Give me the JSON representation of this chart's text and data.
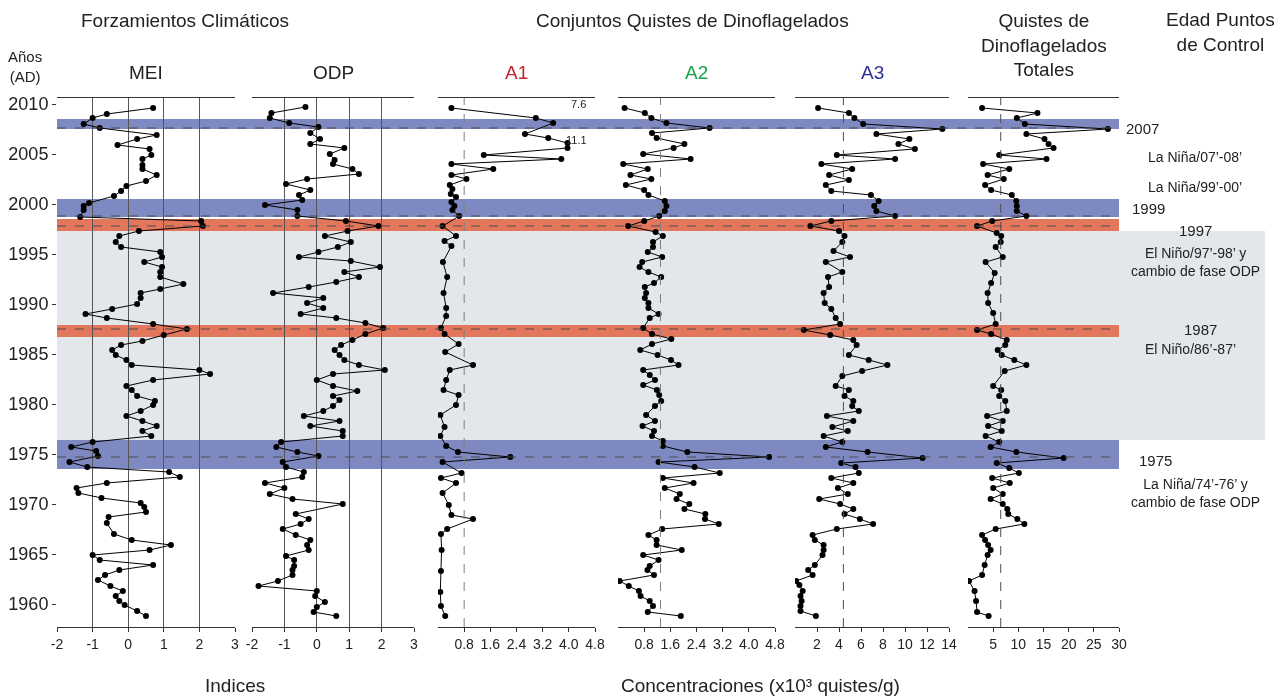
{
  "chart_data": [
    {
      "type": "line",
      "orientation": "horizontal",
      "title": "MEI",
      "xlim": [
        -2,
        3
      ],
      "xticks": [
        -2,
        -1,
        0,
        1,
        2,
        3
      ],
      "ylim": [
        1957.7,
        2010.6
      ],
      "yticks": [
        1960,
        1965,
        1970,
        1975,
        1980,
        1985,
        1990,
        1995,
        2000,
        2005,
        2010
      ],
      "grid": "x",
      "marker": "circle",
      "line_style": "solid",
      "annotations": [
        "Forzamientos Climáticos",
        "Años\n(AD)",
        "Indices"
      ],
      "bands": [
        {
          "axis": "y",
          "from": 1976.4,
          "to": 1997.3,
          "color": "#e3e6ea"
        },
        {
          "axis": "y",
          "from": 2007.5,
          "to": 2008.5,
          "color": "#7e89c2"
        },
        {
          "axis": "y",
          "from": 1998.7,
          "to": 2000.5,
          "color": "#7e89c2"
        },
        {
          "axis": "y",
          "from": 1997.3,
          "to": 1998.5,
          "color": "#e2775d"
        },
        {
          "axis": "y",
          "from": 1986.7,
          "to": 1987.9,
          "color": "#e2775d"
        },
        {
          "axis": "y",
          "from": 1973.5,
          "to": 1976.4,
          "color": "#7e89c2"
        }
      ],
      "ref_lines": [
        {
          "axis": "y",
          "value": 2007.6,
          "color": "#4d4d4d",
          "line_style": "dashed"
        },
        {
          "axis": "y",
          "value": 1998.8,
          "color": "#4d4d4d",
          "line_style": "dashed"
        },
        {
          "axis": "y",
          "value": 1997.8,
          "color": "#4d4d4d",
          "line_style": "dashed"
        },
        {
          "axis": "y",
          "value": 1987.5,
          "color": "#4d4d4d",
          "line_style": "dashed"
        },
        {
          "axis": "y",
          "value": 1974.7,
          "color": "#4d4d4d",
          "line_style": "dashed"
        }
      ],
      "series": [
        {
          "color": "#000000",
          "x": [
            2009.6,
            2009.0,
            2008.6,
            2008.0,
            2007.6,
            2006.9,
            2006.5,
            2005.9,
            2005.5,
            2004.9,
            2004.5,
            2003.9,
            2003.5,
            2002.9,
            2002.3,
            2001.8,
            2001.3,
            2000.8,
            2000.1,
            1999.8,
            1999.4,
            1998.7,
            1998.3,
            1997.8,
            1997.3,
            1996.8,
            1996.2,
            1995.7,
            1995.2,
            1994.7,
            1994.2,
            1993.7,
            1993.2,
            1992.7,
            1992.0,
            1991.5,
            1991.1,
            1990.6,
            1990.0,
            1989.5,
            1989.0,
            1988.6,
            1988.0,
            1987.5,
            1986.9,
            1986.3,
            1985.9,
            1985.4,
            1984.9,
            1984.4,
            1983.9,
            1983.4,
            1983.0,
            1982.4,
            1981.8,
            1981.4,
            1980.8,
            1980.3,
            1979.9,
            1979.3,
            1978.8,
            1978.3,
            1977.8,
            1977.3,
            1976.8,
            1976.2,
            1975.7,
            1975.3,
            1974.8,
            1974.2,
            1973.7,
            1973.2,
            1972.7,
            1972.1,
            1971.6,
            1971.1,
            1970.6,
            1970.1,
            1969.7,
            1969.2,
            1968.7,
            1968.1,
            1967.0,
            1966.4,
            1965.9,
            1965.4,
            1964.9,
            1964.4,
            1963.9,
            1963.4,
            1962.9,
            1962.4,
            1961.8,
            1961.3,
            1960.8,
            1960.3,
            1959.9,
            1959.3,
            1958.8
          ],
          "values": [
            0.7,
            -0.6,
            -1.0,
            -1.25,
            -0.8,
            0.8,
            0.25,
            -0.3,
            0.6,
            0.65,
            0.4,
            0.4,
            0.4,
            0.8,
            0.5,
            -0.05,
            -0.2,
            -0.4,
            -1.1,
            -1.25,
            -1.25,
            -1.35,
            2.05,
            2.1,
            0.3,
            -0.25,
            -0.35,
            -0.2,
            0.9,
            0.95,
            0.45,
            0.95,
            0.9,
            0.9,
            1.55,
            0.9,
            0.35,
            0.35,
            0.25,
            -0.45,
            -1.2,
            -0.6,
            0.7,
            1.65,
            1.0,
            0.4,
            -0.2,
            -0.45,
            -0.35,
            -0.05,
            0.1,
            2.0,
            2.3,
            0.7,
            -0.05,
            0.1,
            0.25,
            0.75,
            0.7,
            0.35,
            -0.05,
            0.4,
            0.8,
            0.4,
            0.65,
            -1.0,
            -1.6,
            -0.9,
            -0.85,
            -1.65,
            -1.15,
            1.15,
            1.45,
            -0.6,
            -1.45,
            -1.4,
            -0.75,
            0.35,
            0.45,
            0.5,
            -0.55,
            -0.6,
            -0.4,
            0.1,
            1.2,
            0.6,
            -1.0,
            -0.8,
            0.7,
            -0.25,
            -0.65,
            -0.85,
            -0.5,
            -0.15,
            -0.35,
            -0.25,
            -0.1,
            0.25,
            0.5
          ]
        }
      ]
    },
    {
      "type": "line",
      "orientation": "horizontal",
      "title": "ODP",
      "xlim": [
        -2,
        3
      ],
      "xticks": [
        -2,
        -1,
        0,
        1,
        2,
        3
      ],
      "ylim": [
        1957.7,
        2010.6
      ],
      "grid": "x",
      "marker": "circle",
      "line_style": "solid",
      "tick_labels": "x",
      "series": [
        {
          "color": "#000000",
          "x": [
            2009.7,
            2009.1,
            2008.6,
            2008.1,
            2007.7,
            2007.1,
            2006.5,
            2006.0,
            2005.6,
            2005.0,
            2004.4,
            2004.0,
            2003.5,
            2003.0,
            2002.5,
            2002.0,
            2001.4,
            2000.9,
            2000.4,
            1999.9,
            1999.4,
            1998.8,
            1998.3,
            1997.8,
            1997.3,
            1996.8,
            1996.2,
            1995.7,
            1995.2,
            1994.7,
            1994.3,
            1993.7,
            1993.2,
            1992.7,
            1992.2,
            1991.7,
            1991.1,
            1990.6,
            1990.1,
            1989.6,
            1989.0,
            1988.6,
            1988.1,
            1987.6,
            1987.0,
            1986.4,
            1985.9,
            1985.4,
            1984.9,
            1984.4,
            1983.9,
            1983.4,
            1983.0,
            1982.4,
            1981.8,
            1981.3,
            1980.8,
            1980.4,
            1979.8,
            1979.3,
            1978.8,
            1978.3,
            1977.8,
            1977.3,
            1976.8,
            1976.2,
            1975.7,
            1975.2,
            1974.8,
            1974.2,
            1973.7,
            1973.2,
            1972.7,
            1972.1,
            1971.6,
            1971.0,
            1970.5,
            1970.0,
            1969.0,
            1968.5,
            1968.0,
            1967.5,
            1966.9,
            1966.4,
            1965.9,
            1965.4,
            1964.8,
            1964.4,
            1963.8,
            1963.4,
            1962.9,
            1962.3,
            1961.8,
            1961.3,
            1960.8,
            1960.2,
            1959.7,
            1959.2,
            1958.8
          ],
          "values": [
            -0.35,
            -1.4,
            -1.45,
            -0.85,
            0.05,
            -0.2,
            0.1,
            -0.2,
            0.85,
            0.4,
            0.55,
            0.5,
            1.1,
            1.3,
            -0.3,
            -0.95,
            -0.2,
            -0.55,
            -0.45,
            -1.6,
            -0.6,
            -0.6,
            0.9,
            1.9,
            0.95,
            0.25,
            1.05,
            0.65,
            0.05,
            -0.55,
            1.05,
            1.95,
            0.85,
            1.3,
            0.6,
            -0.25,
            -1.35,
            0.2,
            -0.3,
            0.2,
            -0.5,
            0.6,
            1.5,
            2.05,
            1.5,
            1.1,
            0.75,
            0.55,
            0.7,
            0.85,
            1.3,
            2.1,
            0.5,
            0,
            0.5,
            1.25,
            0.5,
            0.7,
            0.5,
            0.2,
            -0.4,
            0.7,
            -0.2,
            0.8,
            0.8,
            -1.1,
            -1.25,
            -0.6,
            0.05,
            -1.05,
            -0.95,
            -0.4,
            -0.45,
            -1.6,
            -1.0,
            -1.45,
            -0.75,
            0.8,
            -0.65,
            -0.25,
            -0.5,
            -1.05,
            -0.65,
            -0.2,
            -0.3,
            -0.25,
            -0.95,
            -0.7,
            -0.7,
            -0.75,
            -0.75,
            -1.2,
            -1.8,
            0,
            -0.05,
            0.25,
            0,
            -0.1,
            0.6
          ]
        }
      ]
    },
    {
      "type": "line",
      "orientation": "horizontal",
      "title": "A1",
      "xlim": [
        0,
        4.8
      ],
      "xticks": [
        0.8,
        1.6,
        2.4,
        3.2,
        {
          "value": 4,
          "label": "4.0"
        },
        4.8
      ],
      "ylim": [
        1957.7,
        2010.6
      ],
      "marker": "circle",
      "line_style": "solid",
      "tick_labels": "x",
      "annotations": [
        "Conjuntos Quistes de Dinoflagelados",
        "Concentraciones (x10³ quistes/g)",
        "7.6",
        "11.1"
      ],
      "ref_lines": [
        {
          "axis": "x",
          "value": 0.8,
          "color": "#7f7f7f",
          "line_style": "dashed"
        }
      ],
      "series": [
        {
          "color": "#000000",
          "x": [
            2009.6,
            2008.6,
            2008.1,
            2007.0,
            2006.6,
            2006.1,
            2005.6,
            2004.9,
            2004.5,
            2004.0,
            2003.5,
            2002.9,
            2002.5,
            2001.9,
            2001.5,
            2001.0,
            2000.7,
            2000.2,
            1999.8,
            1999.4,
            1998.8,
            1997.8,
            1996.8,
            1996.3,
            1995.8,
            1994.2,
            1992.7,
            1991.1,
            1989.6,
            1988.8,
            1987.6,
            1987.0,
            1986.0,
            1985.2,
            1983.9,
            1983.4,
            1982.4,
            1981.4,
            1980.9,
            1979.9,
            1978.9,
            1977.7,
            1976.8,
            1975.8,
            1975.2,
            1974.7,
            1974.2,
            1973.1,
            1972.6,
            1972.1,
            1971.1,
            1969.9,
            1968.9,
            1968.5,
            1967.5,
            1967.0,
            1965.4,
            1963.3,
            1961.2,
            1959.8,
            1958.8
          ],
          "values": [
            0.41,
            2.99,
            3.52,
            2.66,
            3.37,
            3.96,
            3.96,
            1.4,
            3.77,
            0.41,
            1.69,
            0.41,
            0.87,
            0.36,
            0.44,
            0.39,
            0.55,
            0.41,
            0.5,
            0.44,
            0.65,
            0.14,
            0.55,
            0.2,
            0.41,
            0.15,
            0.28,
            0.17,
            0.25,
            0.25,
            0.09,
            0.2,
            0.63,
            0.22,
            1.07,
            0.36,
            0.25,
            0.17,
            0.63,
            0.55,
            0.07,
            0.2,
            0.07,
            0.25,
            0.61,
            2.21,
            0.14,
            0.72,
            0.09,
            0.55,
            0.14,
            0.33,
            0.41,
            1.07,
            0.28,
            0.09,
            0.11,
            0.09,
            0.07,
            0.09,
            0.22
          ]
        }
      ]
    },
    {
      "type": "line",
      "orientation": "horizontal",
      "title": "A2",
      "xlim": [
        0,
        4.8
      ],
      "xticks": [
        0.8,
        1.6,
        2.4,
        3.2,
        {
          "value": 4,
          "label": "4.0"
        },
        4.8
      ],
      "ylim": [
        1957.7,
        2010.6
      ],
      "marker": "circle",
      "line_style": "solid",
      "tick_labels": "x",
      "ref_lines": [
        {
          "axis": "x",
          "value": 1.3,
          "color": "#7f7f7f",
          "line_style": "dashed"
        }
      ],
      "series": [
        {
          "color": "#000000",
          "x": [
            2009.6,
            2009.1,
            2008.6,
            2008.1,
            2007.6,
            2007.1,
            2006.6,
            2006.0,
            2005.6,
            2005.0,
            2004.5,
            2004.0,
            2003.5,
            2002.9,
            2002.5,
            2001.9,
            2001.4,
            2000.9,
            2000.3,
            1999.8,
            1999.3,
            1998.8,
            1998.3,
            1997.8,
            1997.2,
            1996.8,
            1996.2,
            1995.7,
            1995.2,
            1994.7,
            1994.2,
            1993.7,
            1993.2,
            1992.7,
            1992.1,
            1991.7,
            1991.1,
            1990.6,
            1990.1,
            1989.6,
            1989.0,
            1988.6,
            1987.6,
            1987.0,
            1986.5,
            1986.0,
            1985.4,
            1984.9,
            1984.4,
            1983.9,
            1983.4,
            1982.9,
            1982.4,
            1981.9,
            1981.4,
            1980.9,
            1980.3,
            1979.8,
            1978.9,
            1978.3,
            1977.8,
            1977.3,
            1976.8,
            1976.3,
            1975.8,
            1975.2,
            1974.7,
            1974.2,
            1973.7,
            1973.1,
            1972.6,
            1972.1,
            1971.6,
            1971.0,
            1970.5,
            1970.0,
            1969.5,
            1969.0,
            1968.5,
            1968.0,
            1967.5,
            1966.9,
            1966.4,
            1965.9,
            1965.4,
            1964.9,
            1964.4,
            1963.8,
            1963.4,
            1962.9,
            1962.3,
            1961.8,
            1961.3,
            1960.8,
            1960.3,
            1959.8,
            1959.2,
            1958.8
          ],
          "values": [
            0.2,
            0.82,
            1.02,
            1.48,
            2.8,
            1.04,
            1.18,
            2.03,
            1.7,
            0.77,
            2.22,
            0.16,
            0.91,
            0.38,
            1.02,
            0.24,
            0.8,
            0.93,
            1.43,
            1.48,
            1.43,
            1.26,
            0.8,
            0.31,
            1.15,
            1.37,
            1.07,
            1.07,
            0.91,
            1.35,
            0.74,
            0.66,
            0.93,
            1.32,
            1.1,
            0.82,
            0.86,
            0.82,
            0.93,
            0.93,
            1.24,
            0.97,
            0.77,
            1.04,
            1.63,
            1.04,
            0.68,
            1.21,
            1.62,
            1.85,
            0.77,
            0.97,
            1.13,
            0.77,
            1.19,
            1.26,
            1.32,
            1.13,
            0.86,
            1.13,
            0.75,
            1.1,
            1.04,
            1.37,
            1.37,
            2.12,
            4.62,
            1.24,
            2.34,
            3.11,
            1.37,
            2.31,
            1.43,
            1.89,
            1.79,
            2.18,
            2.03,
            2.67,
            2.66,
            3.08,
            1.35,
            0.93,
            1.18,
            1.18,
            1.95,
            0.77,
            1.24,
            0.97,
            0.9,
            1.1,
            0.05,
            0.33,
            0.64,
            0.69,
            0.97,
            1.07,
            0.91,
            1.92
          ]
        }
      ]
    },
    {
      "type": "line",
      "orientation": "horizontal",
      "title": "A3",
      "xlim": [
        0,
        14
      ],
      "xticks": [
        2,
        4,
        6,
        8,
        10,
        12,
        14
      ],
      "ylim": [
        1957.7,
        2010.6
      ],
      "marker": "circle",
      "line_style": "solid",
      "tick_labels": "x",
      "ref_lines": [
        {
          "axis": "x",
          "value": 4.4,
          "color": "#4d4d4d",
          "line_style": "dashed"
        }
      ],
      "series": [
        {
          "color": "#000000",
          "x": [
            2009.6,
            2009.1,
            2008.6,
            2008.0,
            2007.5,
            2007.0,
            2006.5,
            2006.0,
            2005.5,
            2004.9,
            2004.5,
            2004.0,
            2003.5,
            2002.9,
            2002.4,
            2001.9,
            2001.3,
            2000.9,
            2000.3,
            1999.8,
            1999.3,
            1998.8,
            1998.3,
            1997.8,
            1997.3,
            1996.8,
            1996.2,
            1995.3,
            1994.7,
            1994.2,
            1993.2,
            1992.7,
            1991.7,
            1991.1,
            1990.1,
            1989.5,
            1988.6,
            1988.0,
            1987.4,
            1986.9,
            1986.4,
            1985.9,
            1984.9,
            1984.4,
            1983.9,
            1983.3,
            1982.8,
            1981.8,
            1981.4,
            1980.8,
            1980.3,
            1979.8,
            1979.3,
            1978.8,
            1978.3,
            1977.7,
            1977.3,
            1976.8,
            1976.2,
            1975.7,
            1975.2,
            1974.6,
            1974.1,
            1973.7,
            1973.1,
            1972.6,
            1972.1,
            1971.6,
            1971.0,
            1970.5,
            1970.0,
            1969.5,
            1969.0,
            1968.5,
            1968.0,
            1967.5,
            1966.9,
            1966.4,
            1965.9,
            1965.4,
            1964.9,
            1963.9,
            1963.4,
            1962.9,
            1962.3,
            1961.9,
            1961.3,
            1960.8,
            1960.3,
            1959.8,
            1959.3,
            1958.8
          ],
          "values": [
            2.1,
            4.9,
            5.4,
            6.2,
            13.4,
            7.4,
            10.4,
            9.4,
            10.9,
            3.8,
            9.1,
            2.4,
            5.2,
            3.1,
            4.9,
            2.8,
            3.3,
            6.9,
            7.6,
            7.2,
            7.4,
            9.1,
            3.3,
            1.4,
            4.0,
            4.5,
            4.3,
            3.5,
            5.0,
            2.8,
            4.3,
            3.0,
            3.1,
            2.6,
            2.7,
            3.3,
            3.7,
            4.1,
            0.8,
            3.2,
            5.3,
            5.6,
            4.9,
            6.7,
            8.4,
            6.1,
            4.3,
            3.7,
            4.9,
            4.5,
            5.3,
            5.2,
            5.8,
            2.9,
            5.3,
            3.4,
            4.8,
            2.6,
            4.3,
            2.8,
            6.6,
            11.6,
            4.2,
            5.5,
            5.8,
            3.3,
            5.3,
            3.9,
            4.8,
            2.2,
            4.1,
            5.3,
            4.5,
            5.9,
            7.1,
            3.8,
            1.6,
            1.8,
            2.6,
            2.6,
            2.5,
            1.8,
            1.2,
            1.6,
            0.1,
            0.4,
            0.7,
            0.5,
            0.6,
            0.5,
            0.5,
            1.9
          ]
        }
      ]
    },
    {
      "type": "line",
      "orientation": "horizontal",
      "title": "Quistes de\nDinoflagelados\nTotales",
      "xlim": [
        0,
        30
      ],
      "xticks": [
        5,
        10,
        15,
        20,
        25,
        30
      ],
      "ylim": [
        1957.7,
        2010.6
      ],
      "marker": "circle",
      "line_style": "solid",
      "tick_labels": "x",
      "annotations": [
        "Edad Puntos\nde Control",
        "2007",
        "La Niña/07’-08’",
        "La Niña/99’-00’",
        "1999",
        "1997",
        "El Niño/97’-98’ y\ncambio de fase ODP",
        "1987",
        "El Niño/86’-87’",
        "1975",
        "La Niña/74’-76’ y\ncambio de fase ODP"
      ],
      "ref_lines": [
        {
          "axis": "x",
          "value": 6.5,
          "color": "#4d4d4d",
          "line_style": "dashed"
        }
      ],
      "series": [
        {
          "color": "#000000",
          "x": [
            2009.6,
            2009.1,
            2008.6,
            2008.0,
            2007.5,
            2007.0,
            2006.5,
            2006.0,
            2005.6,
            2004.9,
            2004.5,
            2004.0,
            2003.5,
            2002.9,
            2002.5,
            2001.9,
            2001.4,
            2000.9,
            2000.3,
            1999.8,
            1999.3,
            1998.8,
            1998.3,
            1997.8,
            1997.1,
            1996.8,
            1996.2,
            1995.7,
            1994.7,
            1994.2,
            1993.1,
            1992.1,
            1991.1,
            1990.1,
            1989.1,
            1988.0,
            1987.4,
            1987.0,
            1986.4,
            1985.9,
            1985.4,
            1984.9,
            1984.4,
            1983.9,
            1983.3,
            1981.8,
            1981.4,
            1980.8,
            1980.3,
            1979.3,
            1978.8,
            1978.3,
            1977.8,
            1977.3,
            1976.8,
            1976.2,
            1975.7,
            1975.2,
            1974.6,
            1974.1,
            1973.6,
            1973.1,
            1972.6,
            1972.1,
            1971.6,
            1971.0,
            1970.5,
            1970.0,
            1969.5,
            1969.0,
            1968.5,
            1968.0,
            1967.5,
            1966.9,
            1966.4,
            1965.9,
            1965.4,
            1964.9,
            1963.9,
            1962.9,
            1962.3,
            1961.3,
            1960.3,
            1959.2,
            1958.8
          ],
          "values": [
            2.8,
            13.8,
            9.7,
            11.3,
            27.8,
            11.6,
            15.2,
            16.0,
            17.0,
            6.2,
            15.6,
            3.0,
            8.2,
            3.9,
            7.1,
            3.4,
            4.6,
            8.7,
            9.6,
            9.7,
            9.7,
            11.6,
            4.8,
            1.8,
            5.7,
            6.6,
            6.5,
            5.5,
            6.9,
            3.5,
            5.3,
            4.6,
            3.9,
            4.0,
            5.0,
            5.5,
            1.8,
            4.6,
            7.7,
            7.4,
            5.9,
            6.7,
            9.2,
            11.6,
            7.3,
            5.0,
            6.6,
            6.2,
            7.4,
            7.7,
            3.8,
            6.9,
            4.0,
            6.7,
            3.5,
            6.2,
            4.5,
            9.6,
            19.0,
            5.7,
            8.2,
            10.1,
            4.8,
            8.3,
            5.0,
            6.9,
            4.5,
            6.9,
            7.8,
            8.0,
            9.8,
            11.2,
            5.5,
            2.8,
            3.4,
            4.0,
            4.5,
            3.9,
            3.3,
            2.8,
            0.2,
            1.3,
            1.6,
            1.8,
            4.1
          ]
        }
      ]
    }
  ]
}
